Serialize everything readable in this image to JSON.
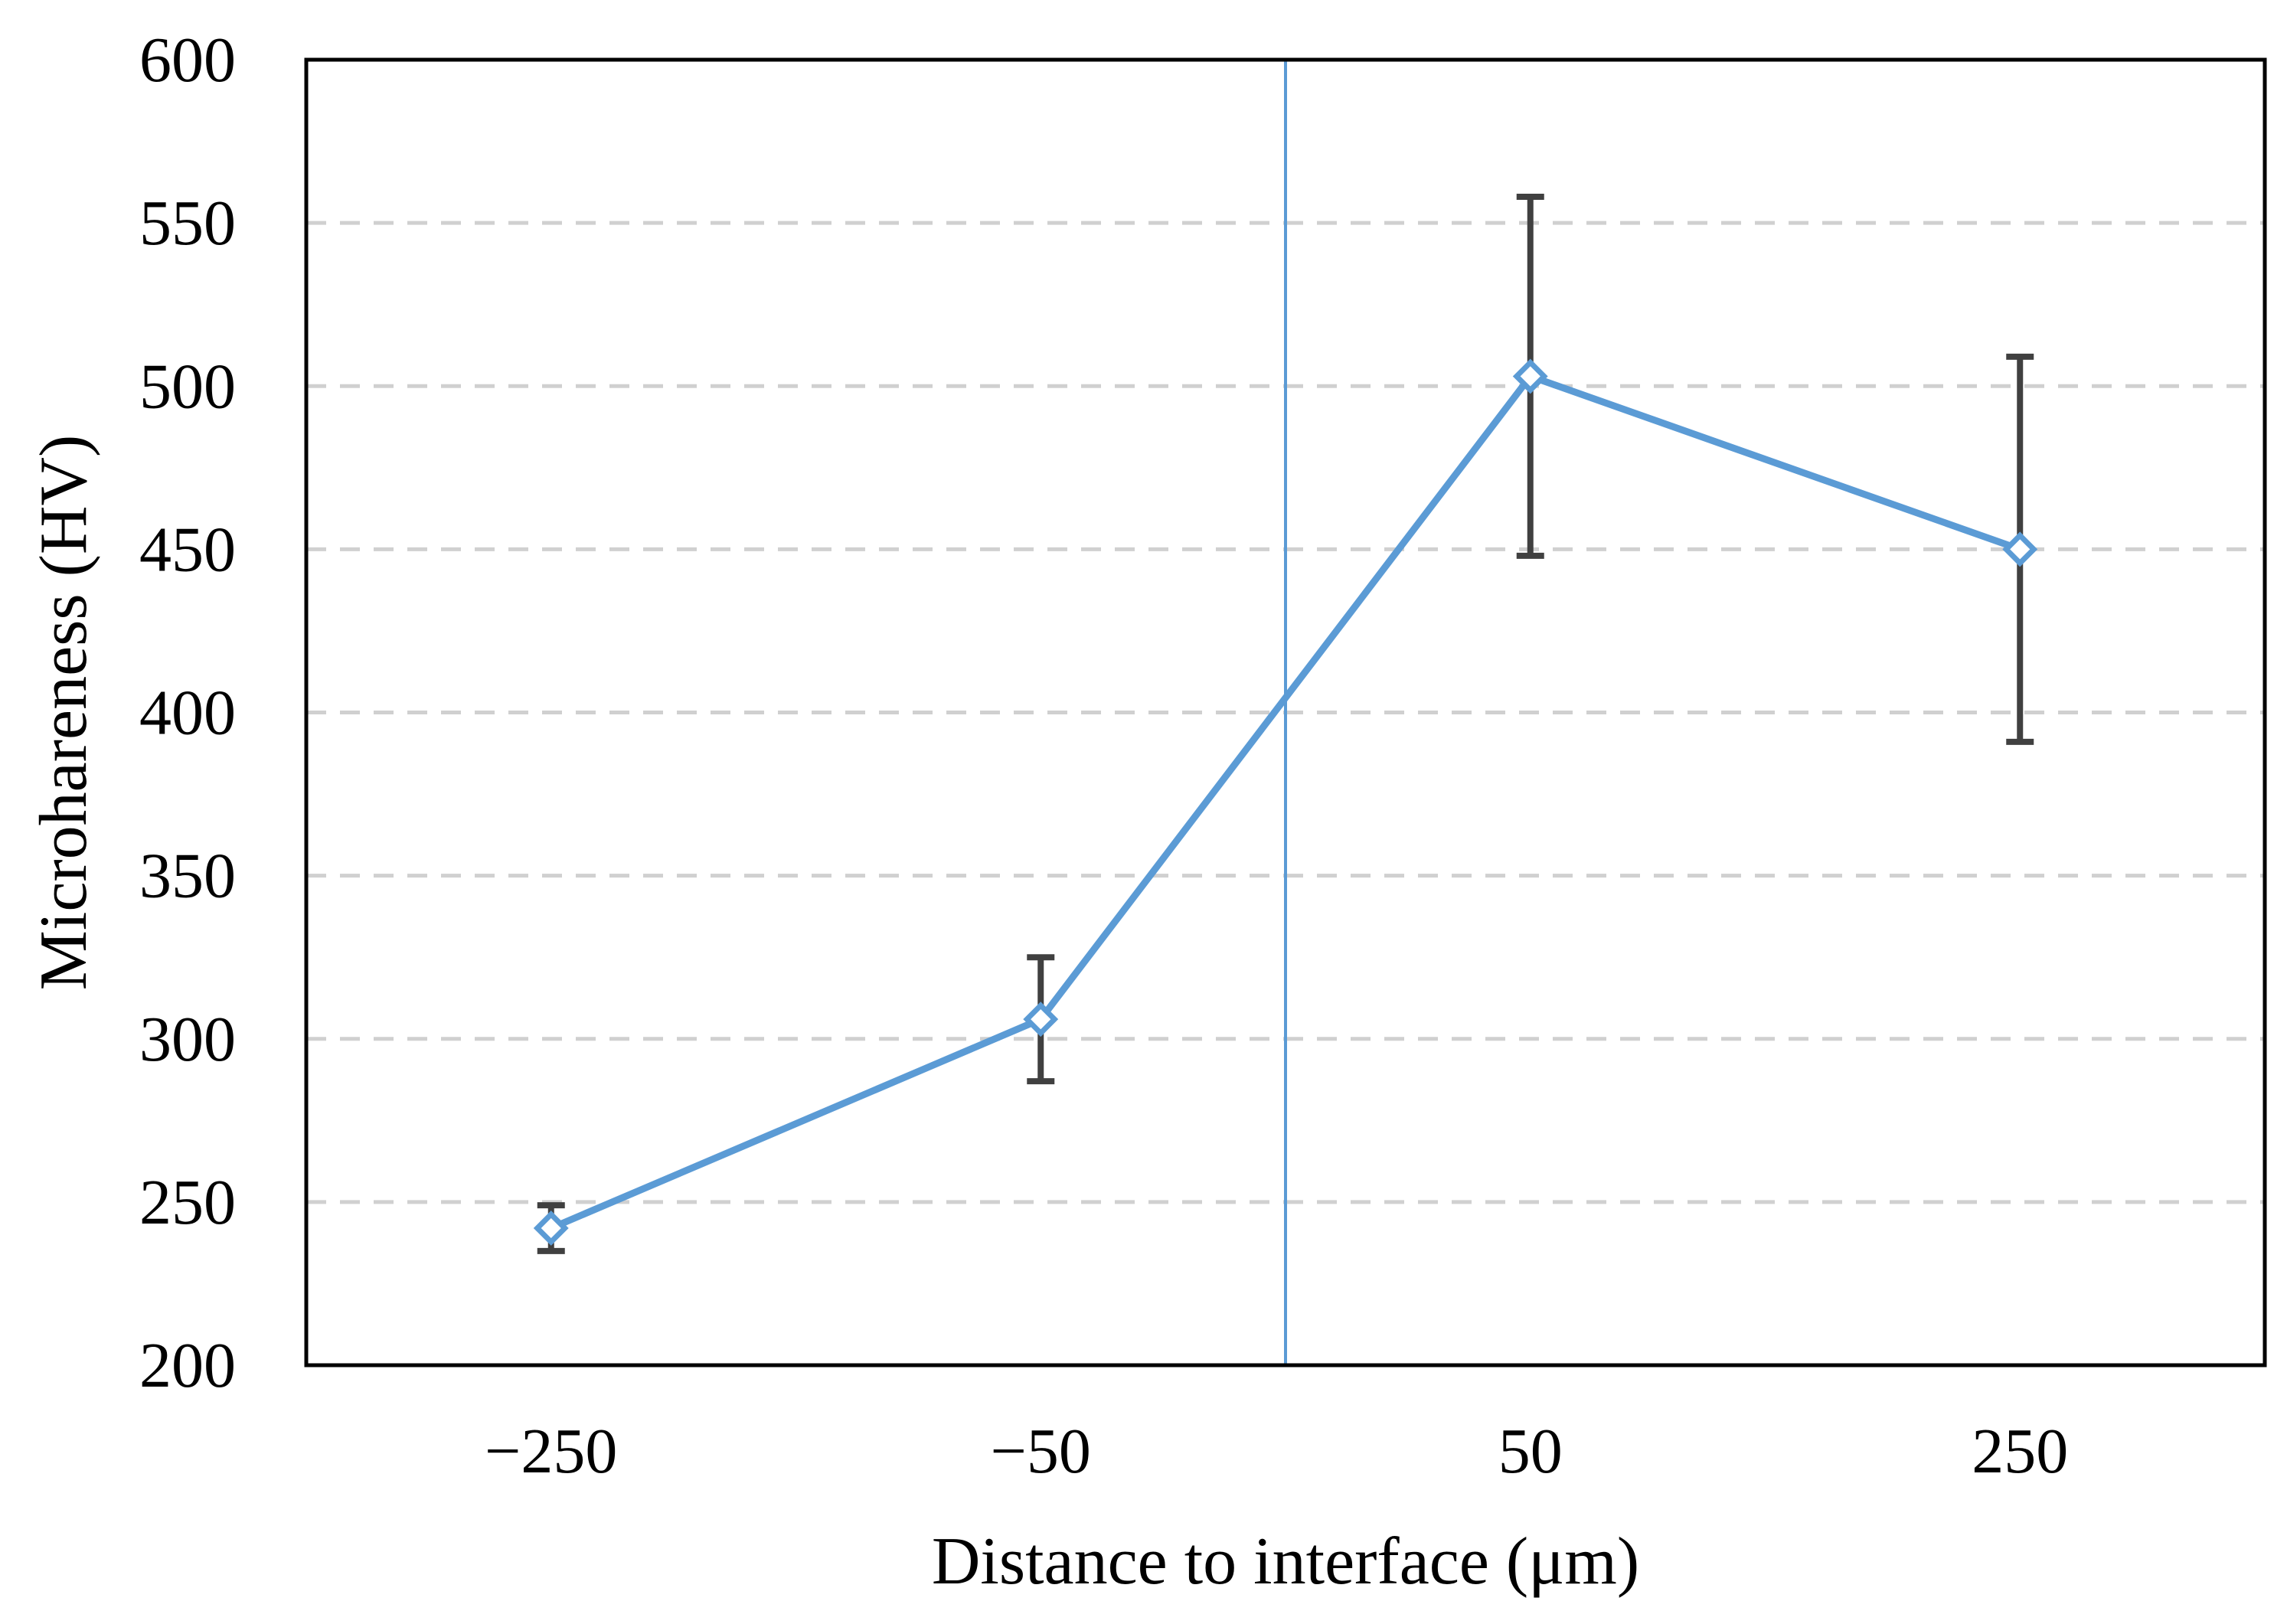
{
  "chart_data": {
    "type": "line",
    "title": "",
    "xlabel": "Distance to interface (μm)",
    "ylabel": "Microhareness (HV)",
    "categories": [
      "−250",
      "−50",
      "50",
      "250"
    ],
    "series": [
      {
        "values": [
          242,
          306,
          503,
          450
        ],
        "error": [
          7,
          19,
          55,
          59
        ],
        "color": "#5B9BD5"
      }
    ],
    "ylim": [
      200,
      600
    ],
    "yticks": [
      "200",
      "250",
      "300",
      "350",
      "400",
      "450",
      "500",
      "550",
      "600"
    ],
    "grid": "horizontal-dashed",
    "interface_line": {
      "between_categories": [
        "−50",
        "50"
      ],
      "color": "#5B9BD5"
    },
    "errorbar_color": "#404040",
    "marker": "diamond",
    "legend": "none"
  }
}
